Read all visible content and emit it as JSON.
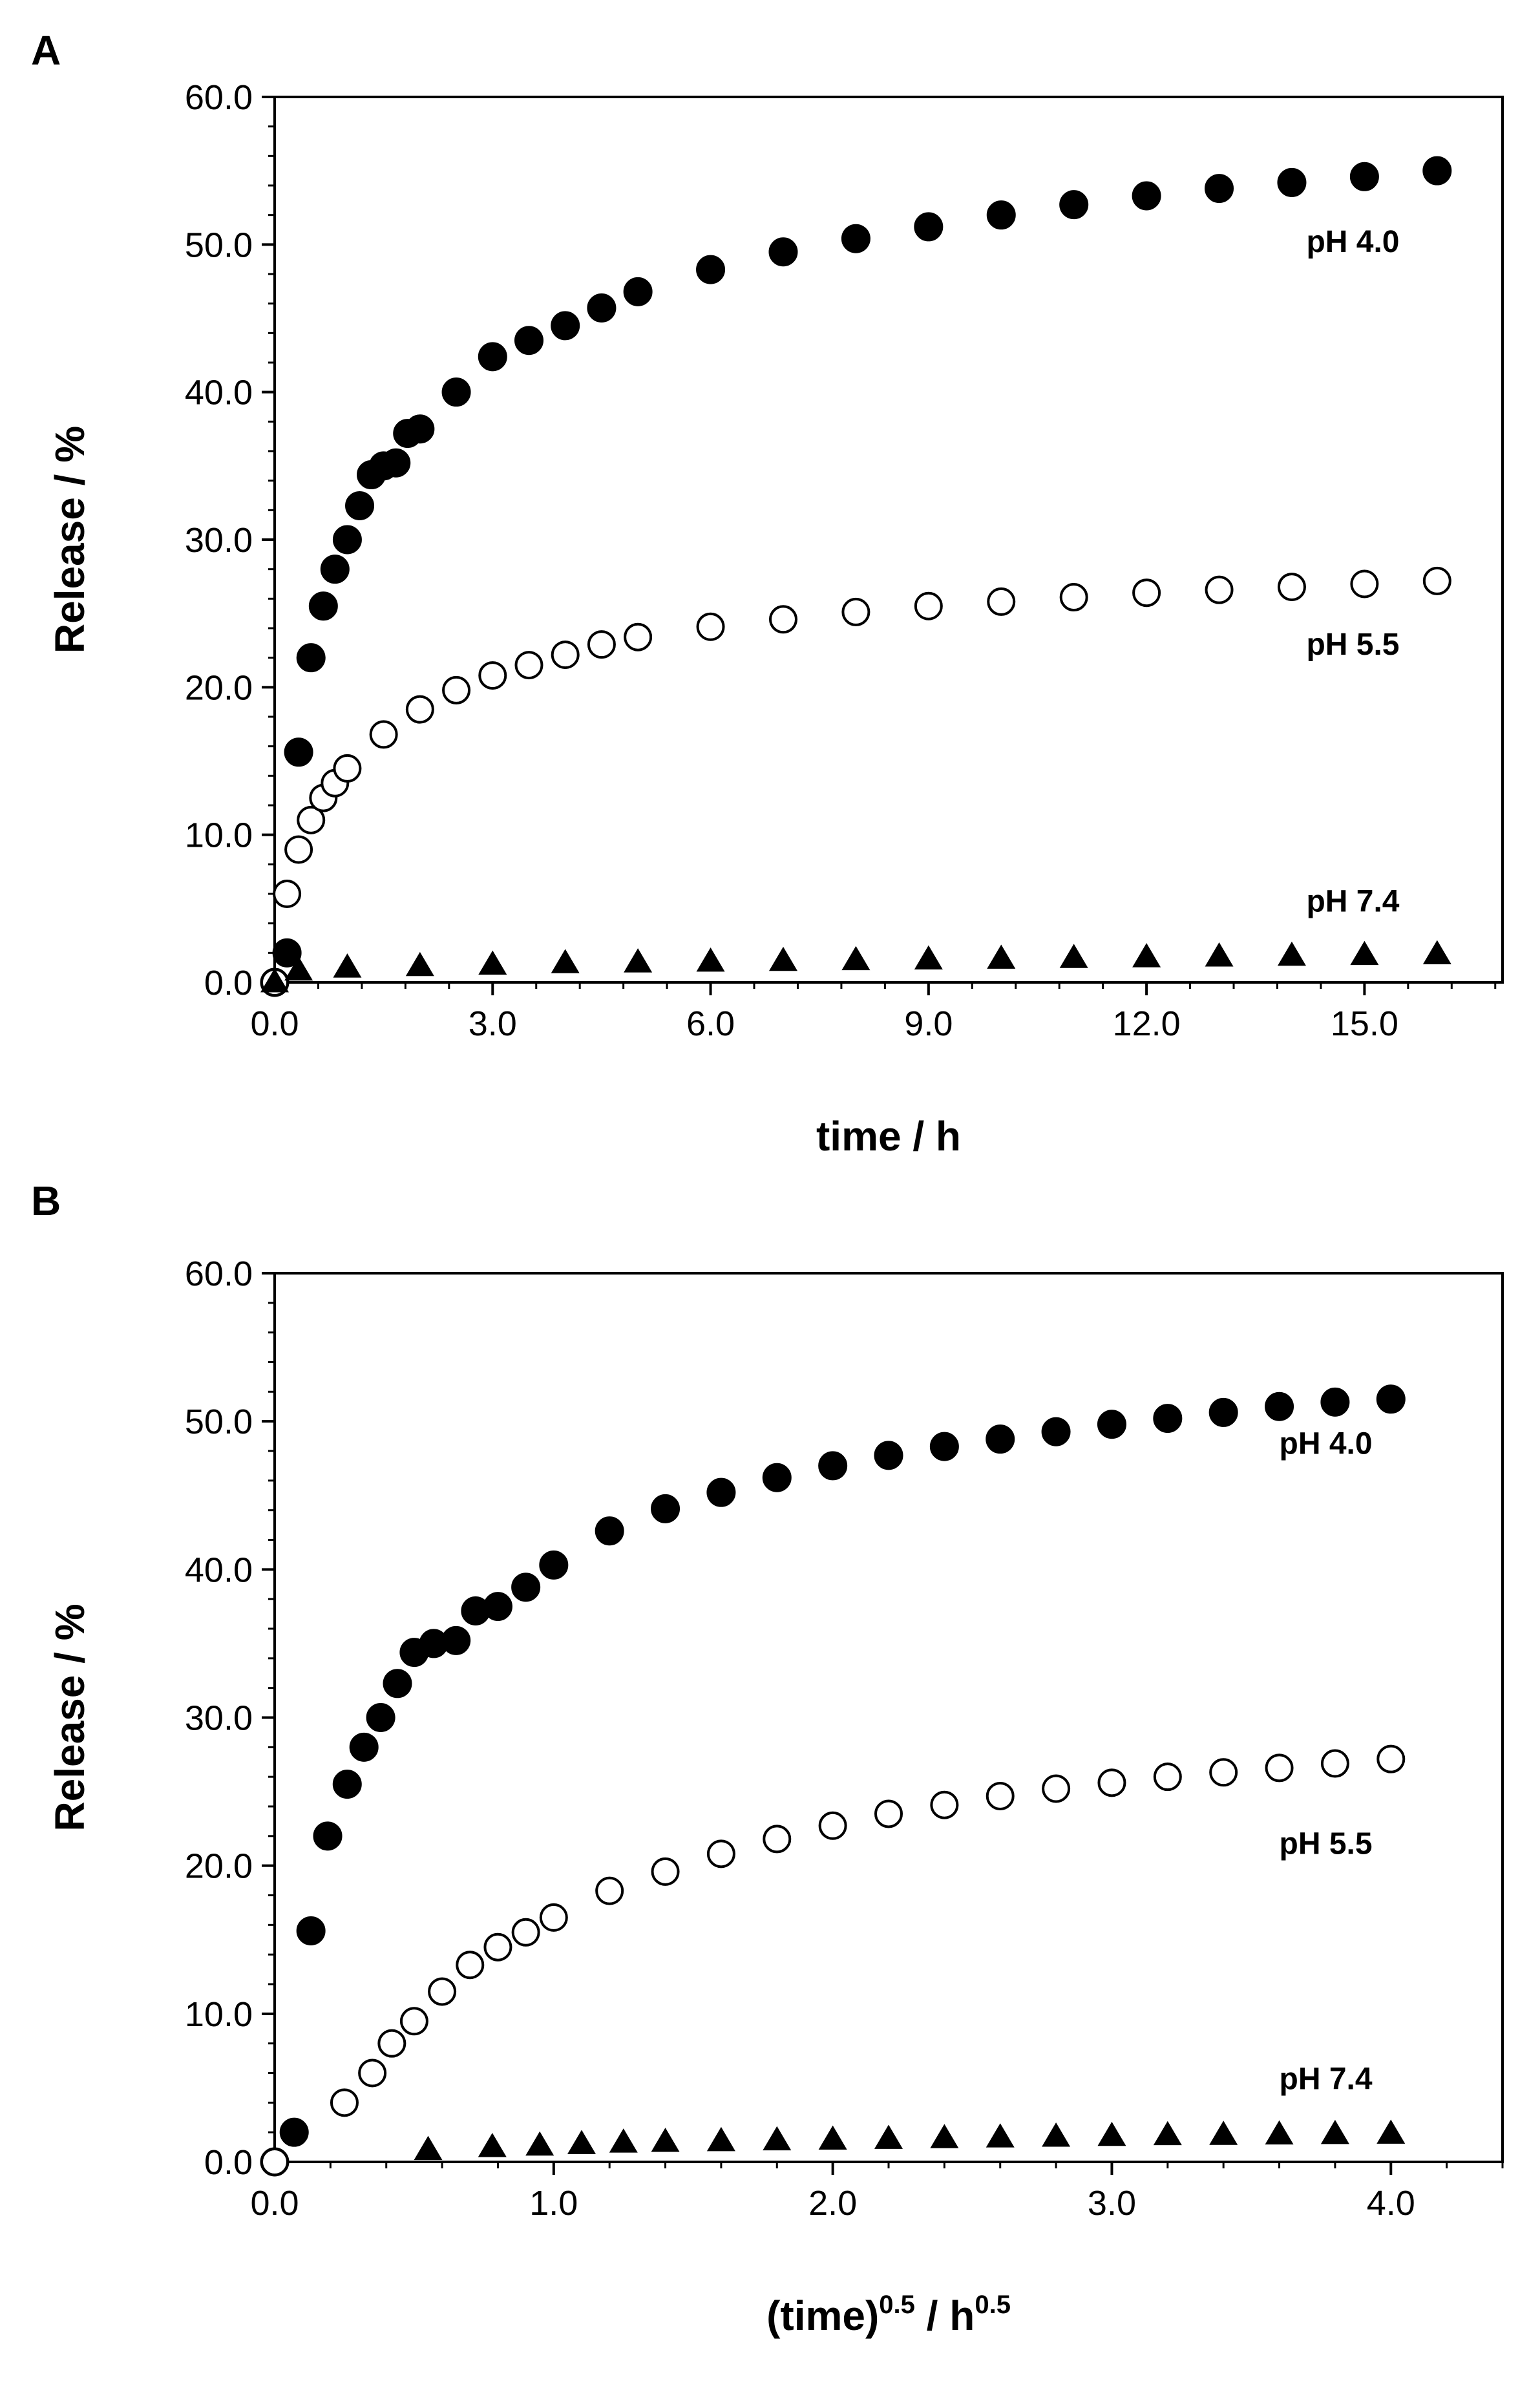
{
  "chart_data": [
    {
      "panel": "A",
      "type": "scatter",
      "xlabel": "time / h",
      "ylabel": "Release / %",
      "xlim": [
        0,
        16.9
      ],
      "ylim": [
        0,
        60
      ],
      "xticks": [
        "0.0",
        "3.0",
        "6.0",
        "9.0",
        "12.0",
        "15.0"
      ],
      "xtick_values": [
        0,
        3,
        6,
        9,
        12,
        15
      ],
      "yticks": [
        "0.0",
        "10.0",
        "20.0",
        "30.0",
        "40.0",
        "50.0",
        "60.0"
      ],
      "ytick_values": [
        0,
        10,
        20,
        30,
        40,
        50,
        60
      ],
      "grid": false,
      "legend": "none",
      "series": [
        {
          "name": "pH 4.0",
          "marker": "filled-circle",
          "color": "#000000",
          "x": [
            0,
            0.17,
            0.33,
            0.5,
            0.67,
            0.83,
            1.0,
            1.17,
            1.33,
            1.5,
            1.67,
            1.83,
            2.0,
            2.5,
            3.0,
            3.5,
            4.0,
            4.5,
            5.0,
            6.0,
            7.0,
            8.0,
            9.0,
            10.0,
            11.0,
            12.0,
            13.0,
            14.0,
            15.0,
            16.0
          ],
          "y": [
            0,
            2,
            15.6,
            22,
            25.5,
            28,
            30,
            32.3,
            34.4,
            35,
            35.2,
            37.2,
            37.5,
            40,
            42.4,
            43.5,
            44.5,
            45.7,
            46.8,
            48.3,
            49.5,
            50.4,
            51.2,
            52,
            52.7,
            53.3,
            53.8,
            54.2,
            54.6,
            55
          ]
        },
        {
          "name": "pH 5.5",
          "marker": "open-circle",
          "color": "#000000",
          "x": [
            0,
            0.17,
            0.33,
            0.5,
            0.67,
            0.83,
            1.0,
            1.5,
            2.0,
            2.5,
            3.0,
            3.5,
            4.0,
            4.5,
            5.0,
            6.0,
            7.0,
            8.0,
            9.0,
            10.0,
            11.0,
            12.0,
            13.0,
            14.0,
            15.0,
            16.0
          ],
          "y": [
            0,
            6,
            9,
            11,
            12.5,
            13.5,
            14.5,
            16.8,
            18.5,
            19.8,
            20.8,
            21.5,
            22.2,
            22.9,
            23.4,
            24.1,
            24.6,
            25.1,
            25.5,
            25.8,
            26.1,
            26.4,
            26.6,
            26.8,
            27,
            27.2
          ]
        },
        {
          "name": "pH 7.4",
          "marker": "filled-triangle",
          "color": "#000000",
          "x": [
            0,
            0.33,
            1.0,
            2.0,
            3.0,
            4.0,
            5.0,
            6.0,
            7.0,
            8.0,
            9.0,
            10.0,
            11.0,
            12.0,
            13.0,
            14.0,
            15.0,
            16.0
          ],
          "y": [
            0,
            0.8,
            1.0,
            1.1,
            1.2,
            1.3,
            1.35,
            1.4,
            1.45,
            1.5,
            1.55,
            1.6,
            1.65,
            1.7,
            1.75,
            1.8,
            1.85,
            1.9
          ]
        }
      ],
      "annotations": [
        {
          "text": "pH 4.0",
          "x": 14.2,
          "y": 49.5
        },
        {
          "text": "pH 5.5",
          "x": 14.2,
          "y": 22.2
        },
        {
          "text": "pH 7.4",
          "x": 14.2,
          "y": 4.8
        }
      ]
    },
    {
      "panel": "B",
      "type": "scatter",
      "xlabel": "(time)0.5 / h0.5",
      "xlabel_parts": [
        "(time)",
        "0.5",
        " / h",
        "0.5"
      ],
      "ylabel": "Release / %",
      "xlim": [
        0,
        4.4
      ],
      "ylim": [
        0,
        60
      ],
      "xticks": [
        "0.0",
        "1.0",
        "2.0",
        "3.0",
        "4.0"
      ],
      "xtick_values": [
        0,
        1,
        2,
        3,
        4
      ],
      "yticks": [
        "0.0",
        "10.0",
        "20.0",
        "30.0",
        "40.0",
        "50.0",
        "60.0"
      ],
      "ytick_values": [
        0,
        10,
        20,
        30,
        40,
        50,
        60
      ],
      "grid": false,
      "legend": "none",
      "series": [
        {
          "name": "pH 4.0",
          "marker": "filled-circle",
          "color": "#000000",
          "x": [
            0,
            0.07,
            0.13,
            0.19,
            0.26,
            0.32,
            0.38,
            0.44,
            0.5,
            0.57,
            0.65,
            0.72,
            0.8,
            0.9,
            1.0,
            1.2,
            1.4,
            1.6,
            1.8,
            2.0,
            2.2,
            2.4,
            2.6,
            2.8,
            3.0,
            3.2,
            3.4,
            3.6,
            3.8,
            4.0
          ],
          "y": [
            0,
            2,
            15.6,
            22,
            25.5,
            28,
            30,
            32.3,
            34.4,
            35,
            35.2,
            37.2,
            37.5,
            38.8,
            40.3,
            42.6,
            44.1,
            45.2,
            46.2,
            47,
            47.7,
            48.3,
            48.8,
            49.3,
            49.8,
            50.2,
            50.6,
            51,
            51.3,
            51.5
          ]
        },
        {
          "name": "pH 5.5",
          "marker": "open-circle",
          "color": "#000000",
          "x": [
            0,
            0.25,
            0.35,
            0.42,
            0.5,
            0.6,
            0.7,
            0.8,
            0.9,
            1.0,
            1.2,
            1.4,
            1.6,
            1.8,
            2.0,
            2.2,
            2.4,
            2.6,
            2.8,
            3.0,
            3.2,
            3.4,
            3.6,
            3.8,
            4.0
          ],
          "y": [
            0,
            4,
            6,
            8,
            9.5,
            11.5,
            13.3,
            14.5,
            15.5,
            16.5,
            18.3,
            19.6,
            20.8,
            21.8,
            22.7,
            23.5,
            24.1,
            24.7,
            25.2,
            25.6,
            26,
            26.3,
            26.6,
            26.9,
            27.2
          ]
        },
        {
          "name": "pH 7.4",
          "marker": "filled-triangle",
          "color": "#000000",
          "x": [
            0.55,
            0.78,
            0.95,
            1.1,
            1.25,
            1.4,
            1.6,
            1.8,
            2.0,
            2.2,
            2.4,
            2.6,
            2.8,
            3.0,
            3.2,
            3.4,
            3.6,
            3.8,
            4.0
          ],
          "y": [
            0.8,
            1.0,
            1.1,
            1.2,
            1.3,
            1.35,
            1.4,
            1.45,
            1.5,
            1.55,
            1.6,
            1.65,
            1.7,
            1.75,
            1.8,
            1.82,
            1.85,
            1.88,
            1.9
          ]
        }
      ],
      "annotations": [
        {
          "text": "pH 4.0",
          "x": 3.6,
          "y": 47.8
        },
        {
          "text": "pH 5.5",
          "x": 3.6,
          "y": 20.8
        },
        {
          "text": "pH 7.4",
          "x": 3.6,
          "y": 4.9
        }
      ]
    }
  ]
}
